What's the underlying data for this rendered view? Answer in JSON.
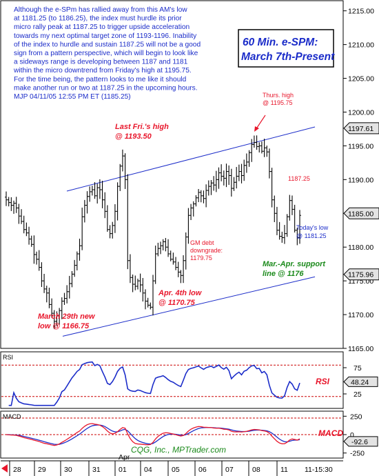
{
  "chart_data": {
    "type": "line",
    "price_panel": {
      "series": "e-SPM 60 minute bars (OHLC)",
      "ylim": [
        1165.0,
        1216.5
      ],
      "ticks": [
        "1215.00",
        "1210.00",
        "1205.00",
        "1200.00",
        "1195.00",
        "1190.00",
        "1185.00",
        "1180.00",
        "1175.00",
        "1170.00",
        "1165.00"
      ],
      "tick_values": [
        1215,
        1210,
        1205,
        1200,
        1195,
        1190,
        1185,
        1180,
        1175,
        1170,
        1165
      ],
      "callouts": [
        {
          "label": "1197.61",
          "value": 1197.61
        },
        {
          "label": "1185.00",
          "value": 1185.0
        },
        {
          "label": "1175.96",
          "value": 1175.96
        }
      ],
      "closes": [
        1187,
        1186.6,
        1186.2,
        1186.5,
        1185.8,
        1184.6,
        1183.8,
        1182.6,
        1182.1,
        1181.2,
        1180.4,
        1178.9,
        1178.2,
        1177,
        1175,
        1173.8,
        1173.2,
        1171.5,
        1170.2,
        1169,
        1169.8,
        1170.6,
        1172,
        1172.4,
        1173.4,
        1174.6,
        1176,
        1177.3,
        1179,
        1180.2,
        1184.5,
        1186.2,
        1187.5,
        1188.2,
        1188.5,
        1187.6,
        1188.8,
        1188.5,
        1187,
        1185.3,
        1182.6,
        1182,
        1183.2,
        1185.3,
        1189,
        1192,
        1193.5,
        1190,
        1178,
        1175.5,
        1174.5,
        1174.2,
        1175,
        1174.4,
        1173.2,
        1172,
        1171.4,
        1171.1,
        1175,
        1179,
        1179.8,
        1180.2,
        1180.8,
        1180,
        1179,
        1178.2,
        1177.8,
        1177,
        1176.3,
        1175.8,
        1178,
        1181.5,
        1184.7,
        1185.8,
        1186.4,
        1187.3,
        1188.1,
        1187.6,
        1187.2,
        1188.4,
        1189,
        1189.5,
        1189.2,
        1190,
        1191,
        1190.5,
        1190.2,
        1191.2,
        1190.6,
        1188.7,
        1189.6,
        1190.5,
        1191.2,
        1190.6,
        1192.1,
        1192.6,
        1194,
        1195.2,
        1195.5,
        1194.9,
        1195,
        1194.2,
        1194.7,
        1194.1,
        1191.2,
        1187,
        1185,
        1182.5,
        1181.6,
        1181.4,
        1182,
        1184.5,
        1186.9,
        1185.6,
        1182.5,
        1181.4,
        1184.7
      ],
      "channel_upper": {
        "start": {
          "bar": 0,
          "value": 1188.3
        },
        "end": {
          "bar": 122,
          "value": 1197.8
        }
      },
      "channel_lower": {
        "start": {
          "bar": 0,
          "value": 1166.8
        },
        "end": {
          "bar": 122,
          "value": 1175.6
        }
      },
      "annotations": [
        {
          "text": "Last Fri.'s high\n@ 1193.50",
          "color": "#e8162b"
        },
        {
          "text": "Thurs. high\n@ 1195.75",
          "color": "#e8162b"
        },
        {
          "text": "1187.25",
          "color": "#e8162b"
        },
        {
          "text": "Today's low\n@ 1181.25",
          "color": "#1b2cc9"
        },
        {
          "text": "GM debt\ndowngrade:\n1179.75",
          "color": "#e8162b"
        },
        {
          "text": "Mar.-Apr. support\nline @ 1176",
          "color": "#1b8a1b"
        },
        {
          "text": "Apr. 4th low\n@ 1170.75",
          "color": "#e8162b"
        },
        {
          "text": "March 29th new\nlow @ 1166.75",
          "color": "#e8162b"
        }
      ]
    },
    "rsi_panel": {
      "name": "RSI",
      "last_value": "48.24",
      "ylim": [
        0,
        100
      ],
      "ticks": [
        "75",
        "25"
      ],
      "tick_values": [
        75,
        25
      ],
      "ref_lines": [
        80,
        20
      ]
    },
    "macd_panel": {
      "name": "MACD",
      "last_value": "-92.6",
      "ylim": [
        -300,
        300
      ],
      "ticks": [
        "250",
        "0",
        "-250"
      ],
      "tick_values": [
        250,
        0,
        -250
      ],
      "zero_line": 0
    },
    "x_axis": {
      "day_labels": [
        "28",
        "29",
        "30",
        "31",
        "01",
        "04",
        "05",
        "06",
        "07",
        "08",
        "11"
      ],
      "month_label": "Apr",
      "end_label": "11-15:30"
    },
    "commentary": "Although the e-SPm has rallied away from this AM's low\nat 1181.25 (to 1186.25), the index must hurdle its prior\nmicro rally peak at 1187.25 to trigger upside acceleration\ntowards my next optimal target zone of 1193-1196. Inability\nof the index to hurdle and sustain 1187.25 will not be a good\nsign from a pattern perspective, which will begin to look like\na sideways range is developing between 1187 and 1181\nwithin the micro downtrend from Friday's high at 1195.75.\nFor the time being, the pattern looks to me like it should\nmake another run or two at 1187.25 in the upcoming hours.\nMJP 04/11/05  12:55 PM ET (1185.25)",
    "title_box": [
      "60 Min. e-SPM:",
      "March 7th-Present"
    ],
    "watermark": "CQG, Inc., MPTrader.com"
  },
  "colors": {
    "price_bars": "#000000",
    "channel": "#1b2cc9",
    "rsi": "#1b2cc9",
    "macd_fast": "#e8162b",
    "macd_slow": "#1b2cc9",
    "ref_line": "#cc0000",
    "callout_bg": "#e3e3e3"
  }
}
